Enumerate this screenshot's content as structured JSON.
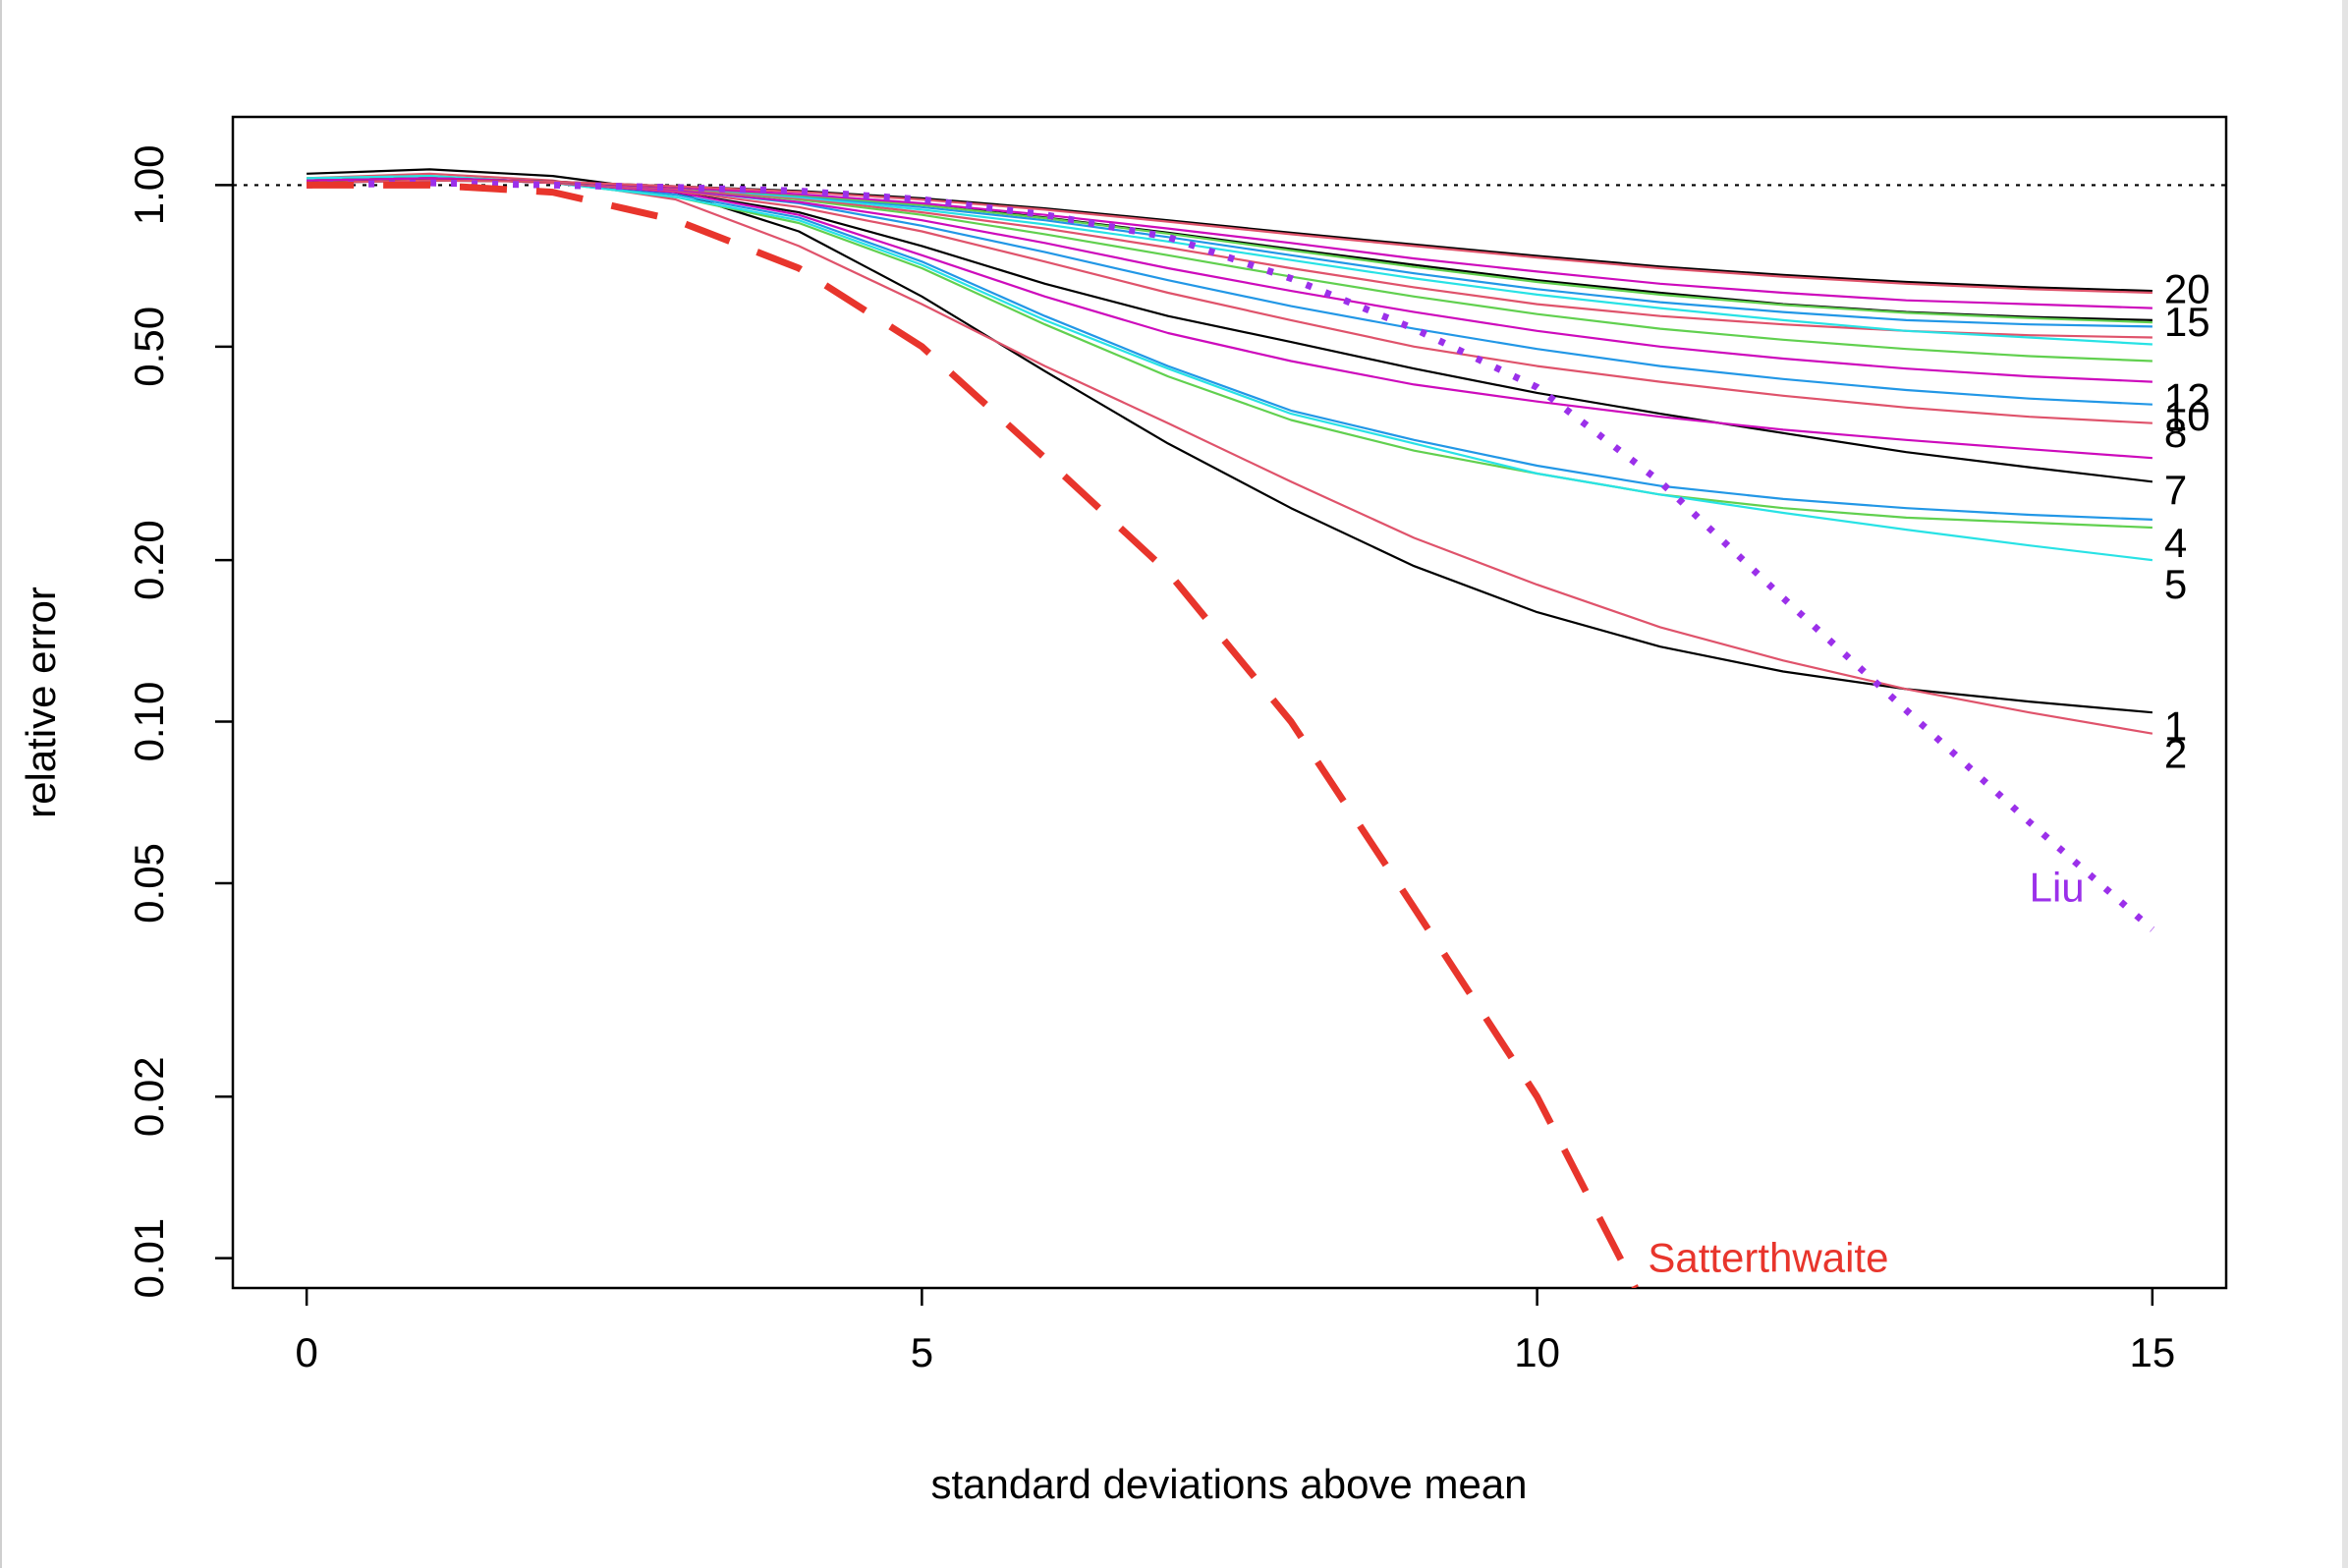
{
  "chart_data": {
    "type": "line",
    "title": "",
    "xlabel": "standard deviations above mean",
    "ylabel": "relative error",
    "xlim": [
      -0.6,
      15.6
    ],
    "ylim": [
      0.0088,
      1.34
    ],
    "y_log_scale": true,
    "grid": false,
    "legend": "none (series labelled at right end of lines)",
    "x_ticks": [
      0,
      5,
      10,
      15
    ],
    "x_tick_labels": [
      "0",
      "5",
      "10",
      "15"
    ],
    "y_ticks": [
      0.01,
      0.02,
      0.05,
      0.1,
      0.2,
      0.5,
      1.0
    ],
    "y_tick_labels": [
      "0.01",
      "0.02",
      "0.05",
      "0.10",
      "0.20",
      "0.50",
      "1.00"
    ],
    "reference_line": {
      "y": 1.0,
      "style": "dotted",
      "color": "#000000"
    },
    "x": [
      0,
      1,
      2,
      3,
      4,
      5,
      6,
      7,
      8,
      9,
      10,
      11,
      12,
      13,
      14,
      15
    ],
    "series": [
      {
        "name": "1",
        "color": "#000000",
        "values": [
          1.05,
          1.07,
          1.04,
          0.97,
          0.82,
          0.62,
          0.45,
          0.33,
          0.25,
          0.195,
          0.16,
          0.138,
          0.124,
          0.115,
          0.109,
          0.104
        ]
      },
      {
        "name": "2",
        "color": "#DF536B",
        "values": [
          1.03,
          1.05,
          1.02,
          0.94,
          0.77,
          0.6,
          0.46,
          0.36,
          0.28,
          0.22,
          0.18,
          0.15,
          0.13,
          0.115,
          0.104,
          0.095
        ]
      },
      {
        "name": "4",
        "color": "#2297E6",
        "values": [
          1.02,
          1.03,
          1.01,
          0.96,
          0.87,
          0.72,
          0.57,
          0.46,
          0.38,
          0.335,
          0.3,
          0.275,
          0.26,
          0.25,
          0.243,
          0.238
        ]
      },
      {
        "name": "5",
        "color": "#61D04F",
        "values": [
          1.03,
          1.04,
          1.01,
          0.95,
          0.85,
          0.7,
          0.55,
          0.44,
          0.365,
          0.32,
          0.29,
          0.265,
          0.25,
          0.24,
          0.235,
          0.23
        ]
      },
      {
        "name": "",
        "color": "#28E2E5",
        "values": [
          1.03,
          1.04,
          1.01,
          0.95,
          0.86,
          0.71,
          0.56,
          0.455,
          0.375,
          0.33,
          0.29,
          0.265,
          0.245,
          0.228,
          0.213,
          0.2
        ]
      },
      {
        "name": "7",
        "color": "#000000",
        "values": [
          1.02,
          1.03,
          1.01,
          0.97,
          0.89,
          0.77,
          0.655,
          0.57,
          0.51,
          0.455,
          0.41,
          0.375,
          0.345,
          0.318,
          0.298,
          0.28
        ]
      },
      {
        "name": "8",
        "color": "#CD0BBC",
        "values": [
          1.02,
          1.03,
          1.01,
          0.97,
          0.88,
          0.74,
          0.62,
          0.53,
          0.47,
          0.425,
          0.395,
          0.37,
          0.35,
          0.335,
          0.322,
          0.31
        ]
      },
      {
        "name": "10",
        "color": "#DF536B",
        "values": [
          1.02,
          1.03,
          1.01,
          0.975,
          0.91,
          0.82,
          0.72,
          0.63,
          0.56,
          0.5,
          0.46,
          0.43,
          0.405,
          0.385,
          0.37,
          0.36
        ]
      },
      {
        "name": "",
        "color": "#2297E6",
        "values": [
          1.02,
          1.03,
          1.015,
          0.98,
          0.925,
          0.84,
          0.75,
          0.665,
          0.595,
          0.54,
          0.495,
          0.46,
          0.435,
          0.415,
          0.4,
          0.39
        ]
      },
      {
        "name": "12",
        "color": "#CD0BBC",
        "values": [
          1.02,
          1.03,
          1.015,
          0.98,
          0.93,
          0.86,
          0.78,
          0.7,
          0.635,
          0.58,
          0.535,
          0.5,
          0.475,
          0.455,
          0.44,
          0.43
        ]
      },
      {
        "name": "",
        "color": "#61D04F",
        "values": [
          1.02,
          1.03,
          1.015,
          0.985,
          0.94,
          0.88,
          0.81,
          0.74,
          0.675,
          0.62,
          0.575,
          0.54,
          0.515,
          0.495,
          0.48,
          0.47
        ]
      },
      {
        "name": "",
        "color": "#DF536B",
        "values": [
          1.02,
          1.03,
          1.015,
          0.985,
          0.945,
          0.89,
          0.83,
          0.765,
          0.7,
          0.645,
          0.6,
          0.57,
          0.55,
          0.535,
          0.525,
          0.52
        ]
      },
      {
        "name": "",
        "color": "#28E2E5",
        "values": [
          1.02,
          1.03,
          1.015,
          0.99,
          0.95,
          0.9,
          0.845,
          0.785,
          0.725,
          0.67,
          0.625,
          0.59,
          0.56,
          0.535,
          0.52,
          0.505
        ]
      },
      {
        "name": "",
        "color": "#2297E6",
        "values": [
          1.02,
          1.03,
          1.015,
          0.99,
          0.955,
          0.91,
          0.86,
          0.8,
          0.74,
          0.685,
          0.64,
          0.605,
          0.58,
          0.56,
          0.55,
          0.545
        ]
      },
      {
        "name": "15",
        "color": "#000000",
        "values": [
          1.02,
          1.03,
          1.015,
          0.99,
          0.96,
          0.92,
          0.87,
          0.815,
          0.76,
          0.71,
          0.665,
          0.63,
          0.6,
          0.58,
          0.568,
          0.56
        ]
      },
      {
        "name": "",
        "color": "#61D04F",
        "values": [
          1.02,
          1.03,
          1.015,
          0.99,
          0.958,
          0.918,
          0.868,
          0.812,
          0.756,
          0.704,
          0.66,
          0.625,
          0.598,
          0.578,
          0.565,
          0.555
        ]
      },
      {
        "name": "",
        "color": "#CD0BBC",
        "values": [
          1.02,
          1.03,
          1.015,
          0.99,
          0.962,
          0.925,
          0.88,
          0.83,
          0.78,
          0.73,
          0.69,
          0.655,
          0.63,
          0.61,
          0.6,
          0.59
        ]
      },
      {
        "name": "20",
        "color": "#000000",
        "values": [
          1.01,
          1.02,
          1.015,
          0.995,
          0.975,
          0.945,
          0.905,
          0.86,
          0.815,
          0.775,
          0.738,
          0.705,
          0.68,
          0.66,
          0.645,
          0.635
        ]
      },
      {
        "name": "",
        "color": "#DF536B",
        "values": [
          1.01,
          1.02,
          1.015,
          0.995,
          0.972,
          0.94,
          0.9,
          0.855,
          0.81,
          0.77,
          0.733,
          0.7,
          0.675,
          0.655,
          0.64,
          0.63
        ]
      },
      {
        "name": "Liu",
        "color": "#9B30EA",
        "dash": "dotted",
        "values": [
          1.0,
          1.01,
          1.0,
          0.99,
          0.975,
          0.94,
          0.88,
          0.8,
          0.67,
          0.54,
          0.42,
          0.28,
          0.17,
          0.105,
          0.065,
          0.041
        ]
      },
      {
        "name": "Satterthwaite",
        "color": "#E8352C",
        "dash": "dashed",
        "values": [
          1.0,
          1.0,
          0.97,
          0.86,
          0.7,
          0.5,
          0.31,
          0.19,
          0.1,
          0.045,
          0.02,
          null,
          null,
          null,
          null,
          null
        ],
        "clipped_at": [
          10.8,
          0.0088
        ]
      }
    ],
    "end_labels": [
      {
        "text": "20",
        "y": 0.64
      },
      {
        "text": "15",
        "y": 0.555
      },
      {
        "text": "12",
        "y": 0.4
      },
      {
        "text": "10",
        "y": 0.37
      },
      {
        "text": "8",
        "y": 0.345
      },
      {
        "text": "7",
        "y": 0.27
      },
      {
        "text": "4",
        "y": 0.215
      },
      {
        "text": "5",
        "y": 0.18
      },
      {
        "text": "1",
        "y": 0.098
      },
      {
        "text": "2",
        "y": 0.087
      }
    ],
    "annotations": [
      {
        "text": "Liu",
        "x": 14.0,
        "y": 0.049,
        "color": "#9B30EA"
      },
      {
        "text": "Satterthwaite",
        "x": 10.9,
        "y": 0.01,
        "color": "#E8352C"
      }
    ]
  }
}
